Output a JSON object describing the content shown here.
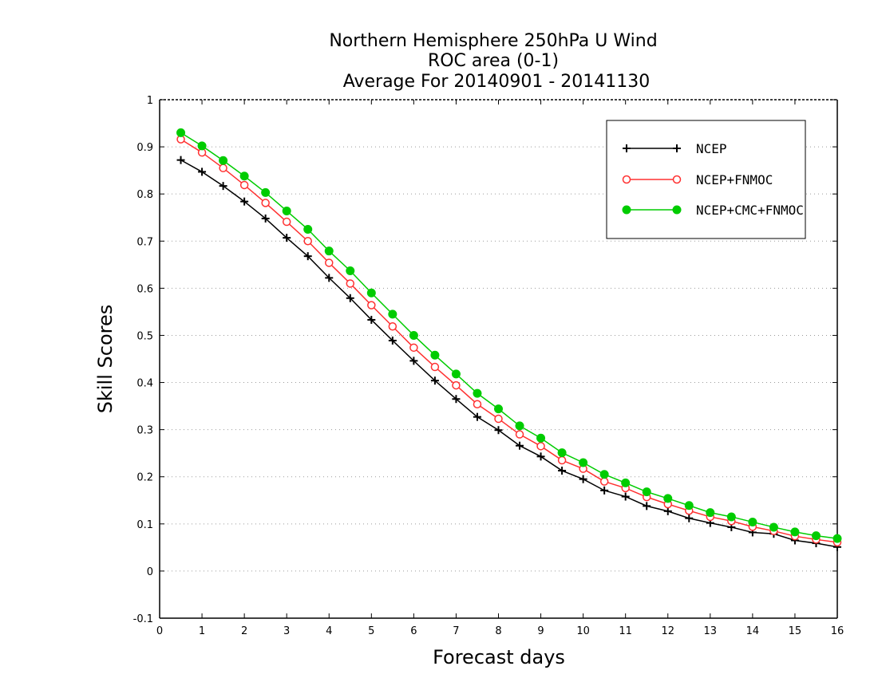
{
  "chart_data": {
    "type": "line",
    "title": [
      "Northern Hemisphere 250hPa U Wind",
      "ROC area (0-1)",
      "Average For 20140901 - 20141130"
    ],
    "xlabel": "Forecast days",
    "ylabel": "Skill Scores",
    "xlim": [
      0,
      16
    ],
    "ylim": [
      -0.1,
      1
    ],
    "x_ticks": [
      "0",
      "1",
      "2",
      "3",
      "4",
      "5",
      "6",
      "7",
      "8",
      "9",
      "10",
      "11",
      "12",
      "13",
      "14",
      "15",
      "16"
    ],
    "y_ticks": [
      "-0.1",
      "0",
      "0.1",
      "0.2",
      "0.3",
      "0.4",
      "0.5",
      "0.6",
      "0.7",
      "0.8",
      "0.9",
      "1"
    ],
    "grid": "horizontal dotted",
    "legend_position": "top-right",
    "x": [
      0.5,
      1,
      1.5,
      2,
      2.5,
      3,
      3.5,
      4,
      4.5,
      5,
      5.5,
      6,
      6.5,
      7,
      7.5,
      8,
      8.5,
      9,
      9.5,
      10,
      10.5,
      11,
      11.5,
      12,
      12.5,
      13,
      13.5,
      14,
      14.5,
      15,
      15.5,
      16
    ],
    "series": [
      {
        "name": "NCEP",
        "color": "#000000",
        "marker": "plus",
        "values": [
          0.872,
          0.847,
          0.817,
          0.784,
          0.748,
          0.707,
          0.668,
          0.622,
          0.579,
          0.533,
          0.489,
          0.446,
          0.404,
          0.365,
          0.327,
          0.299,
          0.266,
          0.243,
          0.213,
          0.195,
          0.171,
          0.158,
          0.138,
          0.127,
          0.112,
          0.102,
          0.093,
          0.082,
          0.079,
          0.065,
          0.059,
          0.051
        ]
      },
      {
        "name": "NCEP+FNMOC",
        "color": "#ff3030",
        "marker": "open-circle",
        "values": [
          0.916,
          0.888,
          0.855,
          0.819,
          0.781,
          0.741,
          0.7,
          0.654,
          0.61,
          0.564,
          0.519,
          0.474,
          0.433,
          0.394,
          0.354,
          0.323,
          0.29,
          0.265,
          0.235,
          0.217,
          0.19,
          0.176,
          0.157,
          0.142,
          0.128,
          0.115,
          0.106,
          0.094,
          0.085,
          0.074,
          0.067,
          0.061
        ]
      },
      {
        "name": "NCEP+CMC+FNMOC",
        "color": "#00cc00",
        "marker": "filled-circle",
        "values": [
          0.93,
          0.902,
          0.871,
          0.838,
          0.803,
          0.764,
          0.725,
          0.679,
          0.637,
          0.59,
          0.545,
          0.5,
          0.458,
          0.418,
          0.377,
          0.344,
          0.308,
          0.282,
          0.251,
          0.23,
          0.205,
          0.187,
          0.168,
          0.154,
          0.139,
          0.124,
          0.115,
          0.104,
          0.093,
          0.083,
          0.075,
          0.069
        ]
      }
    ]
  }
}
